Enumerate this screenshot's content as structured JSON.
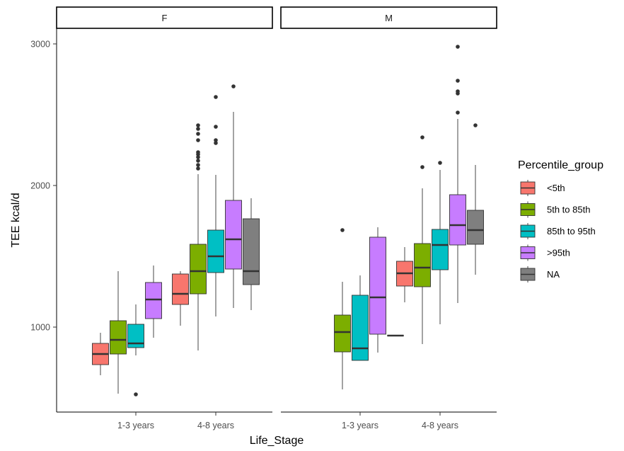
{
  "chart_data": {
    "type": "boxplot",
    "facet_variable": "",
    "panels": [
      {
        "label": "F",
        "groups": [
          {
            "life_stage": "1-3 years",
            "percentile_group": "<5th",
            "q1": 735,
            "median": 810,
            "q3": 885,
            "whisker_low": 660,
            "whisker_high": 960,
            "outliers": []
          },
          {
            "life_stage": "1-3 years",
            "percentile_group": "5th to 85th",
            "q1": 810,
            "median": 910,
            "q3": 1045,
            "whisker_low": 530,
            "whisker_high": 1395,
            "outliers": []
          },
          {
            "life_stage": "1-3 years",
            "percentile_group": "85th to 95th",
            "q1": 855,
            "median": 885,
            "q3": 1020,
            "whisker_low": 800,
            "whisker_high": 1160,
            "outliers": [
              525
            ]
          },
          {
            "life_stage": "1-3 years",
            "percentile_group": ">95th",
            "q1": 1060,
            "median": 1195,
            "q3": 1315,
            "whisker_low": 925,
            "whisker_high": 1435,
            "outliers": []
          },
          {
            "life_stage": "4-8 years",
            "percentile_group": "<5th",
            "q1": 1160,
            "median": 1235,
            "q3": 1375,
            "whisker_low": 1010,
            "whisker_high": 1395,
            "outliers": []
          },
          {
            "life_stage": "4-8 years",
            "percentile_group": "5th to 85th",
            "q1": 1235,
            "median": 1395,
            "q3": 1585,
            "whisker_low": 835,
            "whisker_high": 2080,
            "outliers": [
              2120,
              2145,
              2175,
              2200,
              2220,
              2235,
              2320,
              2365,
              2400,
              2425
            ]
          },
          {
            "life_stage": "4-8 years",
            "percentile_group": "85th to 95th",
            "q1": 1385,
            "median": 1500,
            "q3": 1685,
            "whisker_low": 1075,
            "whisker_high": 2075,
            "outliers": [
              2300,
              2320,
              2415,
              2625
            ]
          },
          {
            "life_stage": "4-8 years",
            "percentile_group": ">95th",
            "q1": 1410,
            "median": 1620,
            "q3": 1895,
            "whisker_low": 1135,
            "whisker_high": 2520,
            "outliers": [
              2700
            ]
          },
          {
            "life_stage": "4-8 years",
            "percentile_group": "NA",
            "q1": 1300,
            "median": 1395,
            "q3": 1765,
            "whisker_low": 1120,
            "whisker_high": 1910,
            "outliers": []
          }
        ]
      },
      {
        "label": "M",
        "groups": [
          {
            "life_stage": "1-3 years",
            "percentile_group": "5th to 85th",
            "q1": 825,
            "median": 965,
            "q3": 1085,
            "whisker_low": 560,
            "whisker_high": 1320,
            "outliers": [
              1685
            ]
          },
          {
            "life_stage": "1-3 years",
            "percentile_group": "85th to 95th",
            "q1": 765,
            "median": 850,
            "q3": 1225,
            "whisker_low": 765,
            "whisker_high": 1365,
            "outliers": []
          },
          {
            "life_stage": "1-3 years",
            "percentile_group": ">95th",
            "q1": 950,
            "median": 1210,
            "q3": 1635,
            "whisker_low": 820,
            "whisker_high": 1705,
            "outliers": []
          },
          {
            "life_stage": "1-3 years",
            "percentile_group": "NA",
            "q1": 940,
            "median": 940,
            "q3": 940,
            "whisker_low": 940,
            "whisker_high": 940,
            "outliers": []
          },
          {
            "life_stage": "4-8 years",
            "percentile_group": "<5th",
            "q1": 1290,
            "median": 1380,
            "q3": 1465,
            "whisker_low": 1175,
            "whisker_high": 1565,
            "outliers": []
          },
          {
            "life_stage": "4-8 years",
            "percentile_group": "5th to 85th",
            "q1": 1285,
            "median": 1420,
            "q3": 1590,
            "whisker_low": 880,
            "whisker_high": 1980,
            "outliers": [
              2130,
              2340
            ]
          },
          {
            "life_stage": "4-8 years",
            "percentile_group": "85th to 95th",
            "q1": 1405,
            "median": 1580,
            "q3": 1690,
            "whisker_low": 1020,
            "whisker_high": 2110,
            "outliers": [
              2160
            ]
          },
          {
            "life_stage": "4-8 years",
            "percentile_group": ">95th",
            "q1": 1580,
            "median": 1720,
            "q3": 1935,
            "whisker_low": 1170,
            "whisker_high": 2470,
            "outliers": [
              2515,
              2650,
              2665,
              2740,
              2980
            ]
          },
          {
            "life_stage": "4-8 years",
            "percentile_group": "NA",
            "q1": 1585,
            "median": 1685,
            "q3": 1825,
            "whisker_low": 1370,
            "whisker_high": 2145,
            "outliers": [
              2425
            ]
          }
        ]
      }
    ],
    "x_categories": [
      "1-3 years",
      "4-8 years"
    ],
    "xlabel": "Life_Stage",
    "ylabel": "TEE kcal/d",
    "yticks": [
      1000,
      2000,
      3000
    ],
    "ylim": [
      400,
      3100
    ],
    "grid": false,
    "legend": {
      "title": "Percentile_group",
      "placement": "right",
      "entries": [
        {
          "label": "<5th",
          "color": "#F8766D"
        },
        {
          "label": "5th to 85th",
          "color": "#7CAE00"
        },
        {
          "label": "85th to 95th",
          "color": "#00BFC4"
        },
        {
          "label": ">95th",
          "color": "#C77CFF"
        },
        {
          "label": "NA",
          "color": "#7F7F7F"
        }
      ]
    }
  }
}
